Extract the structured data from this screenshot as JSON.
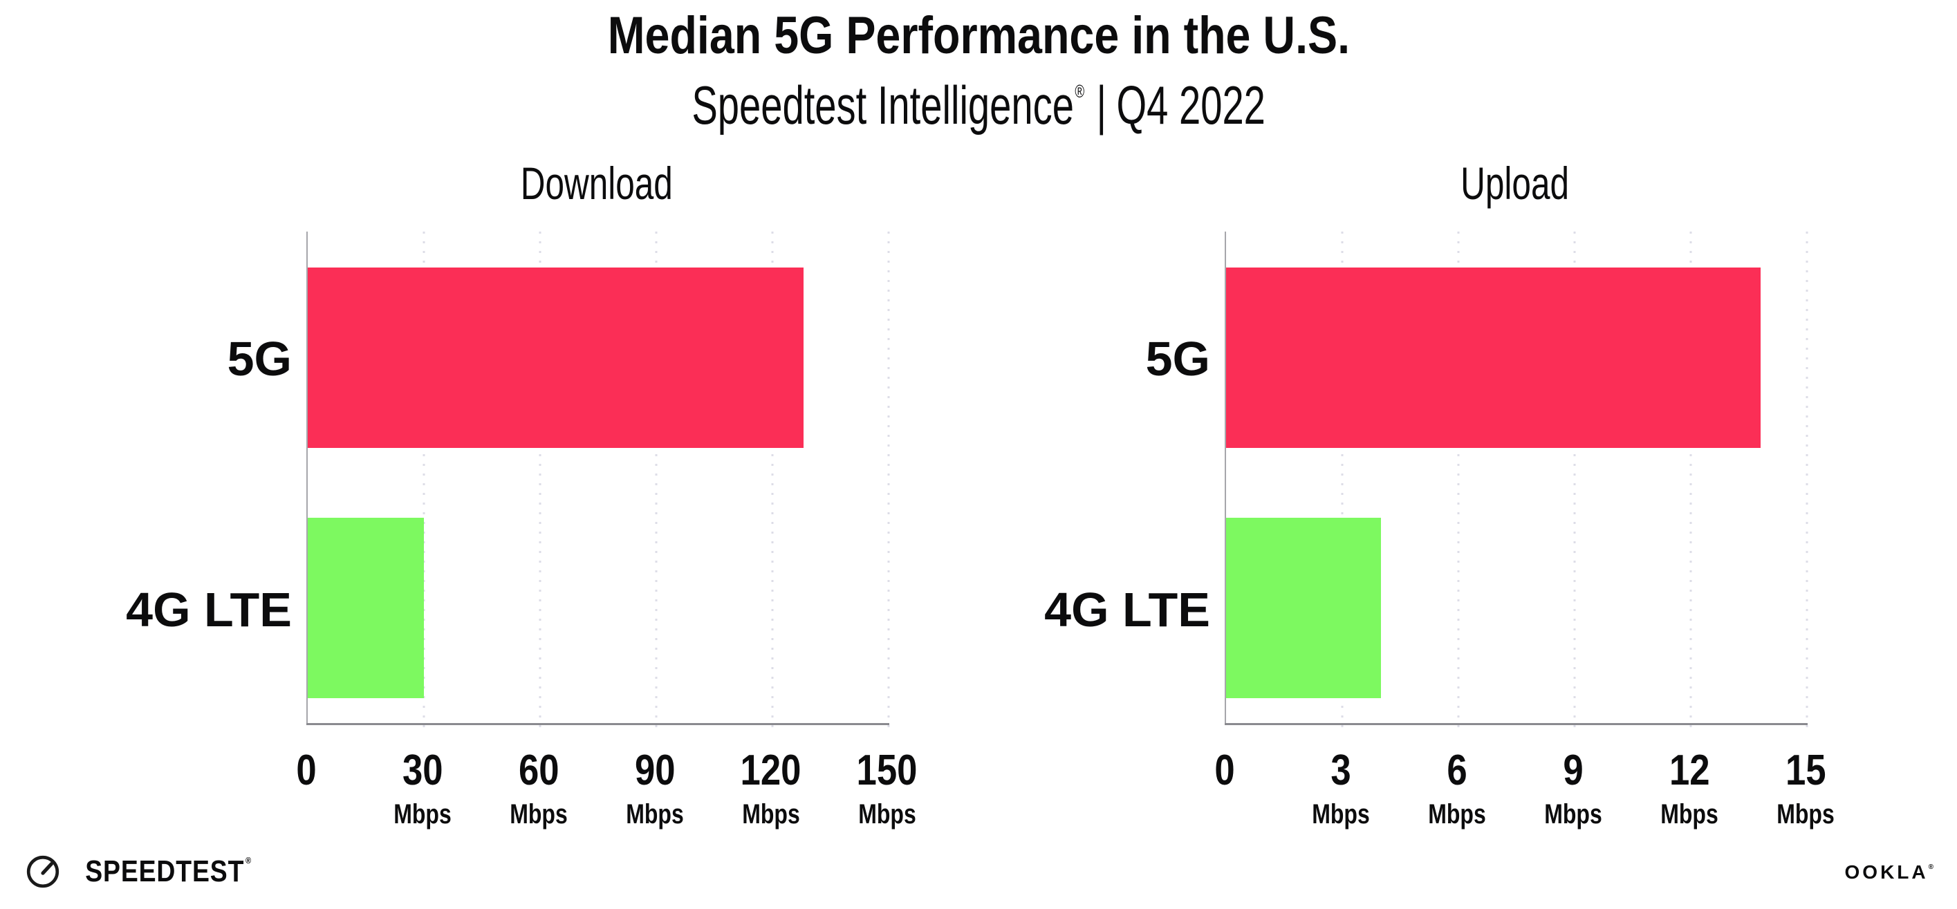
{
  "header": {
    "title": "Median 5G Performance in the U.S.",
    "subtitle_brand": "Speedtest Intelligence",
    "subtitle_registered": "®",
    "subtitle_separator": "|",
    "subtitle_period": "Q4 2022"
  },
  "chart_data": [
    {
      "type": "bar",
      "orientation": "horizontal",
      "title": "Download",
      "categories": [
        "5G",
        "4G LTE"
      ],
      "values": [
        128,
        30
      ],
      "unit": "Mbps",
      "xlim": [
        0,
        150
      ],
      "xticks": [
        0,
        30,
        60,
        90,
        120,
        150
      ],
      "bar_colors": [
        "#fb2e56",
        "#7df960"
      ],
      "grid": "dotted-vertical",
      "legend": "none"
    },
    {
      "type": "bar",
      "orientation": "horizontal",
      "title": "Upload",
      "categories": [
        "5G",
        "4G LTE"
      ],
      "values": [
        13.8,
        4
      ],
      "unit": "Mbps",
      "xlim": [
        0,
        15
      ],
      "xticks": [
        0,
        3,
        6,
        9,
        12,
        15
      ],
      "bar_colors": [
        "#fb2e56",
        "#7df960"
      ],
      "grid": "dotted-vertical",
      "legend": "none"
    }
  ],
  "colors": {
    "background": "#ffffff",
    "bar_5g": "#fb2e56",
    "bar_4g_lte": "#7df960",
    "gridline": "#dddde7",
    "axis_line": "#8a8a8f",
    "text": "#0c0c0d"
  },
  "footer": {
    "speedtest_text": "SPEEDTEST",
    "speedtest_registered": "®",
    "ookla_text": "OOKLA",
    "ookla_registered": "®"
  }
}
